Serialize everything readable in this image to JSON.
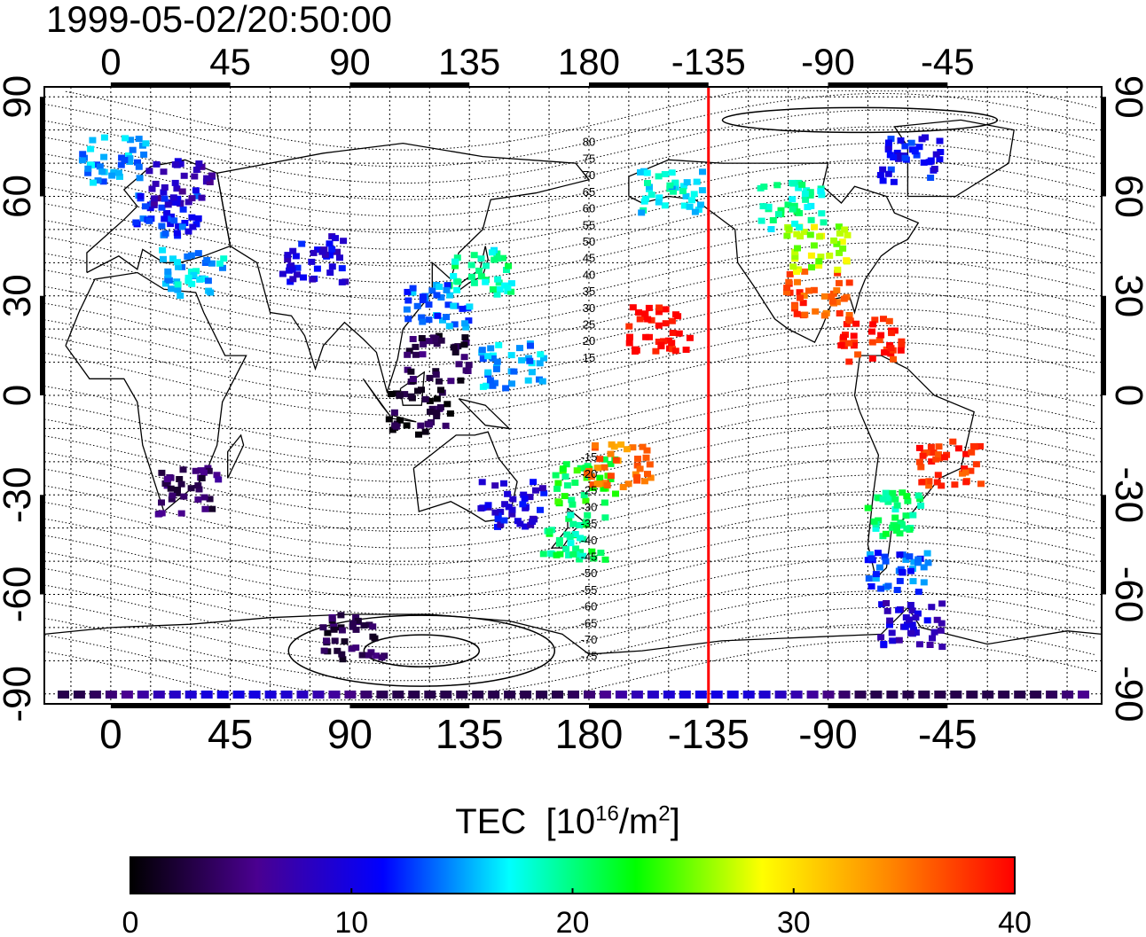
{
  "timestamp": "1999-05-02/20:50:00",
  "map": {
    "lon_range": [
      -25,
      373
    ],
    "lat_range": [
      -93,
      93
    ],
    "top_ticks": [
      "0",
      "45",
      "90",
      "135",
      "180",
      "-135",
      "-90",
      "-45"
    ],
    "top_tick_lons": [
      0,
      45,
      90,
      135,
      180,
      225,
      270,
      315
    ],
    "bottom_ticks": [
      "0",
      "45",
      "90",
      "135",
      "180",
      "-135",
      "-90",
      "-45"
    ],
    "lat_ticks": [
      "90",
      "60",
      "30",
      "0",
      "-30",
      "-60",
      "-90"
    ],
    "lat_tick_values": [
      90,
      60,
      30,
      0,
      -30,
      -60,
      -90
    ],
    "grid": true,
    "terminator_color": "#ff0000",
    "terminator_lon": 225,
    "contour_labels": [
      "80",
      "75",
      "70",
      "65",
      "60",
      "55",
      "50",
      "45",
      "40",
      "35",
      "30",
      "25",
      "20",
      "15",
      "-15",
      "-20",
      "-25",
      "-30",
      "-35",
      "-40",
      "-45",
      "-50",
      "-55",
      "-60",
      "-65",
      "-70",
      "-75"
    ]
  },
  "legend": {
    "title": "TEC",
    "unit_prefix": "[10",
    "unit_exp": "16",
    "unit_mid": "/m",
    "unit_exp2": "2",
    "unit_suffix": "]",
    "ticks": [
      "0",
      "10",
      "20",
      "30",
      "40"
    ],
    "tick_values": [
      0,
      10,
      20,
      30,
      40
    ],
    "range": [
      0,
      40
    ],
    "colors": [
      "#000000",
      "#4a0090",
      "#0000ff",
      "#00ffff",
      "#00ff00",
      "#ffff00",
      "#ff8800",
      "#ff0000"
    ]
  },
  "tec_clusters": [
    {
      "region": "europe",
      "lon": 20,
      "lat": 55,
      "tec": 12
    },
    {
      "region": "scandinavia",
      "lon": 25,
      "lat": 65,
      "tec": 8
    },
    {
      "region": "north-atlantic",
      "lon": 0,
      "lat": 72,
      "tec": 15
    },
    {
      "region": "mediterranean",
      "lon": 30,
      "lat": 38,
      "tec": 16
    },
    {
      "region": "central-asia",
      "lon": 75,
      "lat": 42,
      "tec": 10
    },
    {
      "region": "japan",
      "lon": 138,
      "lat": 38,
      "tec": 19
    },
    {
      "region": "east-china",
      "lon": 122,
      "lat": 28,
      "tec": 14
    },
    {
      "region": "philippines",
      "lon": 122,
      "lat": 12,
      "tec": 3
    },
    {
      "region": "indonesia",
      "lon": 115,
      "lat": -4,
      "tec": 2
    },
    {
      "region": "western-pacific",
      "lon": 150,
      "lat": 10,
      "tec": 15
    },
    {
      "region": "australia-east",
      "lon": 150,
      "lat": -32,
      "tec": 10
    },
    {
      "region": "new-zealand",
      "lon": 173,
      "lat": -42,
      "tec": 20
    },
    {
      "region": "fiji",
      "lon": 178,
      "lat": -25,
      "tec": 22
    },
    {
      "region": "south-pacific",
      "lon": 190,
      "lat": -20,
      "tec": 35
    },
    {
      "region": "hawaii",
      "lon": 205,
      "lat": 21,
      "tec": 40
    },
    {
      "region": "usa-south",
      "lon": 265,
      "lat": 32,
      "tec": 37
    },
    {
      "region": "usa-north",
      "lon": 265,
      "lat": 45,
      "tec": 27
    },
    {
      "region": "canada",
      "lon": 255,
      "lat": 58,
      "tec": 19
    },
    {
      "region": "alaska",
      "lon": 210,
      "lat": 62,
      "tec": 17
    },
    {
      "region": "greenland",
      "lon": 300,
      "lat": 72,
      "tec": 11
    },
    {
      "region": "caribbean",
      "lon": 285,
      "lat": 18,
      "tec": 39
    },
    {
      "region": "brazil",
      "lon": 315,
      "lat": -20,
      "tec": 38
    },
    {
      "region": "argentina",
      "lon": 295,
      "lat": -35,
      "tec": 20
    },
    {
      "region": "patagonia",
      "lon": 295,
      "lat": -52,
      "tec": 13
    },
    {
      "region": "antarctic-peninsula",
      "lon": 300,
      "lat": -68,
      "tec": 9
    },
    {
      "region": "southern-africa",
      "lon": 28,
      "lat": -28,
      "tec": 4
    },
    {
      "region": "antarctica-ring",
      "lon": 90,
      "lat": -72,
      "tec": 3
    },
    {
      "region": "south-pole",
      "lon": 180,
      "lat": -88,
      "tec": 5
    }
  ]
}
